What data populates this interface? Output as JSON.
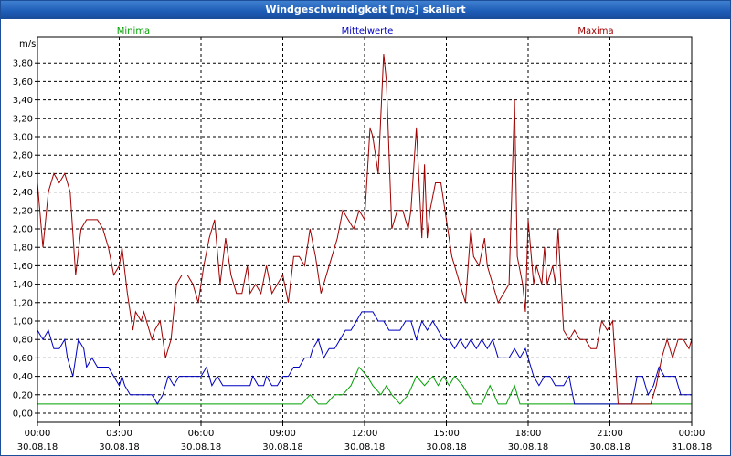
{
  "window": {
    "title": "Windgeschwindigkeit [m/s] skaliert"
  },
  "colors": {
    "minima": "#00a000",
    "mittel": "#0000c0",
    "maxima": "#a00000",
    "grid": "#000000"
  },
  "chart_data": {
    "type": "line",
    "title": "Windgeschwindigkeit [m/s] skaliert",
    "ylabel": "m/s",
    "ylim": [
      0,
      3.9
    ],
    "yticks": [
      0,
      0.2,
      0.4,
      0.6,
      0.8,
      1.0,
      1.2,
      1.4,
      1.6,
      1.8,
      2.0,
      2.2,
      2.4,
      2.6,
      2.8,
      3.0,
      3.2,
      3.4,
      3.6,
      3.8
    ],
    "ytick_labels": [
      "0,00",
      "0,20",
      "0,40",
      "0,60",
      "0,80",
      "1,00",
      "1,20",
      "1,40",
      "1,60",
      "1,80",
      "2,00",
      "2,20",
      "2,40",
      "2,60",
      "2,80",
      "3,00",
      "3,20",
      "3,40",
      "3,60",
      "3,80"
    ],
    "xlim_hours": [
      0,
      24
    ],
    "xticks": [
      {
        "h": 0,
        "time": "00:00",
        "date": "30.08.18"
      },
      {
        "h": 3,
        "time": "03:00",
        "date": "30.08.18"
      },
      {
        "h": 6,
        "time": "06:00",
        "date": "30.08.18"
      },
      {
        "h": 9,
        "time": "09:00",
        "date": "30.08.18"
      },
      {
        "h": 12,
        "time": "12:00",
        "date": "30.08.18"
      },
      {
        "h": 15,
        "time": "15:00",
        "date": "30.08.18"
      },
      {
        "h": 18,
        "time": "18:00",
        "date": "30.08.18"
      },
      {
        "h": 21,
        "time": "21:00",
        "date": "30.08.18"
      },
      {
        "h": 24,
        "time": "00:00",
        "date": "31.08.18"
      }
    ],
    "grid": true,
    "legend_position": "top",
    "series": [
      {
        "name": "Minima",
        "color_key": "minima",
        "points": [
          [
            0,
            0.1
          ],
          [
            9.7,
            0.1
          ],
          [
            10.0,
            0.2
          ],
          [
            10.3,
            0.1
          ],
          [
            10.6,
            0.1
          ],
          [
            10.9,
            0.2
          ],
          [
            11.2,
            0.2
          ],
          [
            11.5,
            0.3
          ],
          [
            11.8,
            0.5
          ],
          [
            12.1,
            0.4
          ],
          [
            12.3,
            0.3
          ],
          [
            12.6,
            0.2
          ],
          [
            12.8,
            0.3
          ],
          [
            13.0,
            0.2
          ],
          [
            13.3,
            0.1
          ],
          [
            13.6,
            0.2
          ],
          [
            13.9,
            0.4
          ],
          [
            14.2,
            0.3
          ],
          [
            14.5,
            0.4
          ],
          [
            14.7,
            0.3
          ],
          [
            14.9,
            0.4
          ],
          [
            15.1,
            0.3
          ],
          [
            15.3,
            0.4
          ],
          [
            15.6,
            0.3
          ],
          [
            15.8,
            0.2
          ],
          [
            16.0,
            0.1
          ],
          [
            16.3,
            0.1
          ],
          [
            16.6,
            0.3
          ],
          [
            16.9,
            0.1
          ],
          [
            17.2,
            0.1
          ],
          [
            17.5,
            0.3
          ],
          [
            17.7,
            0.1
          ],
          [
            24,
            0.1
          ]
        ]
      },
      {
        "name": "Mittelwerte",
        "color_key": "mittel",
        "points": [
          [
            0,
            0.9
          ],
          [
            0.2,
            0.8
          ],
          [
            0.4,
            0.9
          ],
          [
            0.6,
            0.7
          ],
          [
            0.8,
            0.7
          ],
          [
            1.0,
            0.8
          ],
          [
            1.1,
            0.6
          ],
          [
            1.3,
            0.4
          ],
          [
            1.5,
            0.8
          ],
          [
            1.7,
            0.7
          ],
          [
            1.8,
            0.5
          ],
          [
            2.0,
            0.6
          ],
          [
            2.2,
            0.5
          ],
          [
            2.4,
            0.5
          ],
          [
            2.6,
            0.5
          ],
          [
            2.8,
            0.4
          ],
          [
            3.0,
            0.3
          ],
          [
            3.1,
            0.4
          ],
          [
            3.2,
            0.3
          ],
          [
            3.4,
            0.2
          ],
          [
            3.8,
            0.2
          ],
          [
            4.0,
            0.2
          ],
          [
            4.2,
            0.2
          ],
          [
            4.4,
            0.1
          ],
          [
            4.6,
            0.2
          ],
          [
            4.8,
            0.4
          ],
          [
            5.0,
            0.3
          ],
          [
            5.2,
            0.4
          ],
          [
            5.4,
            0.4
          ],
          [
            5.6,
            0.4
          ],
          [
            5.8,
            0.4
          ],
          [
            6.0,
            0.4
          ],
          [
            6.2,
            0.5
          ],
          [
            6.4,
            0.3
          ],
          [
            6.6,
            0.4
          ],
          [
            6.8,
            0.3
          ],
          [
            7.0,
            0.3
          ],
          [
            7.2,
            0.3
          ],
          [
            7.4,
            0.3
          ],
          [
            7.6,
            0.3
          ],
          [
            7.8,
            0.3
          ],
          [
            7.9,
            0.4
          ],
          [
            8.1,
            0.3
          ],
          [
            8.3,
            0.3
          ],
          [
            8.4,
            0.4
          ],
          [
            8.6,
            0.3
          ],
          [
            8.8,
            0.3
          ],
          [
            9.0,
            0.4
          ],
          [
            9.2,
            0.4
          ],
          [
            9.4,
            0.5
          ],
          [
            9.6,
            0.5
          ],
          [
            9.8,
            0.6
          ],
          [
            10.0,
            0.6
          ],
          [
            10.1,
            0.7
          ],
          [
            10.3,
            0.8
          ],
          [
            10.4,
            0.7
          ],
          [
            10.5,
            0.6
          ],
          [
            10.7,
            0.7
          ],
          [
            10.9,
            0.7
          ],
          [
            11.1,
            0.8
          ],
          [
            11.3,
            0.9
          ],
          [
            11.5,
            0.9
          ],
          [
            11.7,
            1.0
          ],
          [
            11.9,
            1.1
          ],
          [
            12.1,
            1.1
          ],
          [
            12.3,
            1.1
          ],
          [
            12.5,
            1.0
          ],
          [
            12.7,
            1.0
          ],
          [
            12.9,
            0.9
          ],
          [
            13.1,
            0.9
          ],
          [
            13.3,
            0.9
          ],
          [
            13.5,
            1.0
          ],
          [
            13.7,
            1.0
          ],
          [
            13.9,
            0.8
          ],
          [
            14.1,
            1.0
          ],
          [
            14.3,
            0.9
          ],
          [
            14.5,
            1.0
          ],
          [
            14.7,
            0.9
          ],
          [
            14.9,
            0.8
          ],
          [
            15.1,
            0.8
          ],
          [
            15.3,
            0.7
          ],
          [
            15.5,
            0.8
          ],
          [
            15.7,
            0.7
          ],
          [
            15.9,
            0.8
          ],
          [
            16.1,
            0.7
          ],
          [
            16.3,
            0.8
          ],
          [
            16.5,
            0.7
          ],
          [
            16.7,
            0.8
          ],
          [
            16.9,
            0.6
          ],
          [
            17.1,
            0.6
          ],
          [
            17.3,
            0.6
          ],
          [
            17.5,
            0.7
          ],
          [
            17.7,
            0.6
          ],
          [
            17.9,
            0.7
          ],
          [
            18.0,
            0.6
          ],
          [
            18.2,
            0.4
          ],
          [
            18.4,
            0.3
          ],
          [
            18.6,
            0.4
          ],
          [
            18.8,
            0.4
          ],
          [
            19.0,
            0.3
          ],
          [
            19.3,
            0.3
          ],
          [
            19.5,
            0.4
          ],
          [
            19.7,
            0.1
          ],
          [
            19.8,
            0.1
          ],
          [
            20.0,
            0.1
          ],
          [
            21.8,
            0.1
          ],
          [
            22.0,
            0.4
          ],
          [
            22.2,
            0.4
          ],
          [
            22.4,
            0.2
          ],
          [
            22.6,
            0.3
          ],
          [
            22.8,
            0.5
          ],
          [
            23.0,
            0.4
          ],
          [
            23.2,
            0.4
          ],
          [
            23.4,
            0.4
          ],
          [
            23.6,
            0.2
          ],
          [
            24,
            0.2
          ]
        ]
      },
      {
        "name": "Maxima",
        "color_key": "maxima",
        "points": [
          [
            0,
            2.5
          ],
          [
            0.2,
            1.8
          ],
          [
            0.4,
            2.4
          ],
          [
            0.6,
            2.6
          ],
          [
            0.8,
            2.5
          ],
          [
            1.0,
            2.6
          ],
          [
            1.2,
            2.4
          ],
          [
            1.4,
            1.5
          ],
          [
            1.6,
            2.0
          ],
          [
            1.8,
            2.1
          ],
          [
            2.0,
            2.1
          ],
          [
            2.2,
            2.1
          ],
          [
            2.4,
            2.0
          ],
          [
            2.6,
            1.8
          ],
          [
            2.8,
            1.5
          ],
          [
            3.0,
            1.6
          ],
          [
            3.1,
            1.8
          ],
          [
            3.3,
            1.3
          ],
          [
            3.5,
            0.9
          ],
          [
            3.6,
            1.1
          ],
          [
            3.8,
            1.0
          ],
          [
            3.9,
            1.1
          ],
          [
            4.0,
            1.0
          ],
          [
            4.2,
            0.8
          ],
          [
            4.3,
            0.9
          ],
          [
            4.5,
            1.0
          ],
          [
            4.7,
            0.6
          ],
          [
            4.9,
            0.8
          ],
          [
            5.1,
            1.4
          ],
          [
            5.3,
            1.5
          ],
          [
            5.5,
            1.5
          ],
          [
            5.7,
            1.4
          ],
          [
            5.9,
            1.2
          ],
          [
            6.1,
            1.6
          ],
          [
            6.3,
            1.9
          ],
          [
            6.5,
            2.1
          ],
          [
            6.7,
            1.4
          ],
          [
            6.9,
            1.9
          ],
          [
            7.1,
            1.5
          ],
          [
            7.3,
            1.3
          ],
          [
            7.5,
            1.3
          ],
          [
            7.7,
            1.6
          ],
          [
            7.8,
            1.3
          ],
          [
            8.0,
            1.4
          ],
          [
            8.2,
            1.3
          ],
          [
            8.4,
            1.6
          ],
          [
            8.6,
            1.3
          ],
          [
            8.8,
            1.4
          ],
          [
            9.0,
            1.5
          ],
          [
            9.2,
            1.2
          ],
          [
            9.4,
            1.7
          ],
          [
            9.6,
            1.7
          ],
          [
            9.8,
            1.6
          ],
          [
            10.0,
            2.0
          ],
          [
            10.2,
            1.7
          ],
          [
            10.4,
            1.3
          ],
          [
            10.6,
            1.5
          ],
          [
            10.8,
            1.7
          ],
          [
            11.0,
            1.9
          ],
          [
            11.2,
            2.2
          ],
          [
            11.4,
            2.1
          ],
          [
            11.6,
            2.0
          ],
          [
            11.8,
            2.2
          ],
          [
            12.0,
            2.1
          ],
          [
            12.2,
            3.1
          ],
          [
            12.3,
            3.0
          ],
          [
            12.5,
            2.6
          ],
          [
            12.7,
            3.9
          ],
          [
            12.8,
            3.6
          ],
          [
            13.0,
            2.0
          ],
          [
            13.2,
            2.2
          ],
          [
            13.4,
            2.2
          ],
          [
            13.6,
            2.0
          ],
          [
            13.7,
            2.2
          ],
          [
            13.9,
            3.1
          ],
          [
            14.1,
            1.9
          ],
          [
            14.2,
            2.7
          ],
          [
            14.3,
            1.9
          ],
          [
            14.4,
            2.2
          ],
          [
            14.6,
            2.5
          ],
          [
            14.8,
            2.5
          ],
          [
            15.0,
            2.1
          ],
          [
            15.2,
            1.7
          ],
          [
            15.3,
            1.6
          ],
          [
            15.5,
            1.4
          ],
          [
            15.7,
            1.2
          ],
          [
            15.9,
            2.0
          ],
          [
            16.0,
            1.7
          ],
          [
            16.2,
            1.6
          ],
          [
            16.4,
            1.9
          ],
          [
            16.5,
            1.6
          ],
          [
            16.7,
            1.4
          ],
          [
            16.9,
            1.2
          ],
          [
            17.1,
            1.3
          ],
          [
            17.3,
            1.4
          ],
          [
            17.5,
            3.4
          ],
          [
            17.6,
            1.7
          ],
          [
            17.8,
            1.4
          ],
          [
            17.9,
            1.1
          ],
          [
            18.0,
            2.1
          ],
          [
            18.2,
            1.4
          ],
          [
            18.3,
            1.6
          ],
          [
            18.5,
            1.4
          ],
          [
            18.6,
            1.8
          ],
          [
            18.7,
            1.4
          ],
          [
            18.9,
            1.6
          ],
          [
            19.0,
            1.4
          ],
          [
            19.1,
            2.0
          ],
          [
            19.3,
            0.9
          ],
          [
            19.5,
            0.8
          ],
          [
            19.7,
            0.9
          ],
          [
            19.9,
            0.8
          ],
          [
            20.1,
            0.8
          ],
          [
            20.3,
            0.7
          ],
          [
            20.5,
            0.7
          ],
          [
            20.7,
            1.0
          ],
          [
            20.9,
            0.9
          ],
          [
            21.1,
            1.0
          ],
          [
            21.3,
            0.1
          ],
          [
            21.6,
            0.1
          ],
          [
            22.5,
            0.1
          ],
          [
            22.7,
            0.3
          ],
          [
            22.9,
            0.6
          ],
          [
            23.1,
            0.8
          ],
          [
            23.3,
            0.6
          ],
          [
            23.5,
            0.8
          ],
          [
            23.7,
            0.8
          ],
          [
            23.9,
            0.7
          ],
          [
            24,
            0.8
          ]
        ]
      }
    ]
  }
}
